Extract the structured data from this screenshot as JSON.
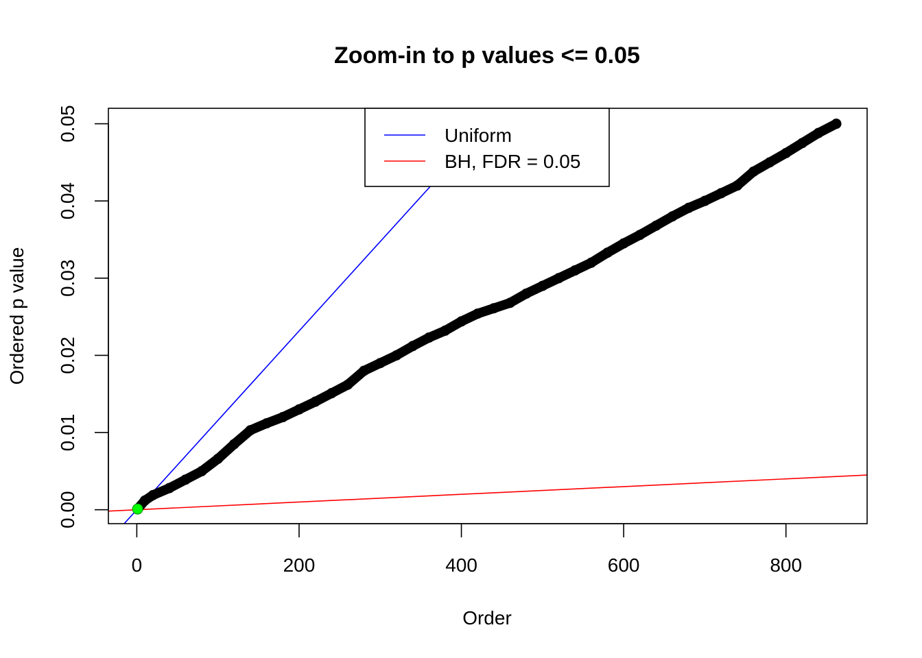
{
  "chart_data": {
    "type": "scatter",
    "title": "Zoom-in to p values <= 0.05",
    "xlabel": "Order",
    "ylabel": "Ordered p value",
    "xlim": [
      -35,
      900
    ],
    "ylim": [
      -0.0018,
      0.052
    ],
    "x_ticks": [
      0,
      200,
      400,
      600,
      800
    ],
    "x_tick_labels": [
      "0",
      "200",
      "400",
      "600",
      "800"
    ],
    "y_ticks": [
      0.0,
      0.01,
      0.02,
      0.03,
      0.04,
      0.05
    ],
    "y_tick_labels": [
      "0.00",
      "0.01",
      "0.02",
      "0.03",
      "0.04",
      "0.05"
    ],
    "grid": false,
    "legend": {
      "position": "top-center",
      "entries": [
        {
          "label": "Uniform",
          "color": "#0000ff"
        },
        {
          "label": "BH, FDR = 0.05",
          "color": "#ff0000"
        }
      ]
    },
    "series": [
      {
        "name": "",
        "kind": "points",
        "color": "#000000",
        "x": [
          1,
          10,
          20,
          40,
          60,
          80,
          100,
          120,
          140,
          160,
          180,
          200,
          220,
          240,
          260,
          280,
          300,
          320,
          340,
          360,
          380,
          400,
          420,
          440,
          460,
          480,
          500,
          520,
          540,
          560,
          580,
          600,
          620,
          640,
          660,
          680,
          700,
          720,
          740,
          760,
          780,
          800,
          820,
          840,
          862
        ],
        "y": [
          0.0001,
          0.0012,
          0.0019,
          0.0028,
          0.0039,
          0.005,
          0.0066,
          0.0085,
          0.0103,
          0.0112,
          0.012,
          0.013,
          0.014,
          0.0151,
          0.0162,
          0.018,
          0.019,
          0.02,
          0.0212,
          0.0223,
          0.0232,
          0.0244,
          0.0254,
          0.0261,
          0.0268,
          0.028,
          0.029,
          0.03,
          0.031,
          0.032,
          0.0333,
          0.0345,
          0.0356,
          0.0368,
          0.038,
          0.0391,
          0.04,
          0.041,
          0.042,
          0.0438,
          0.045,
          0.0462,
          0.0475,
          0.0488,
          0.05
        ]
      },
      {
        "name": "",
        "kind": "highlight-point",
        "color": "#00ff00",
        "x": [
          1
        ],
        "y": [
          0.0001
        ]
      },
      {
        "name": "Uniform",
        "kind": "abline",
        "color": "#0000ff",
        "intercept": 0.0,
        "slope": 0.0001158
      },
      {
        "name": "BH, FDR = 0.05",
        "kind": "abline",
        "color": "#ff0000",
        "intercept": 0.0,
        "slope": 5e-06
      }
    ]
  }
}
